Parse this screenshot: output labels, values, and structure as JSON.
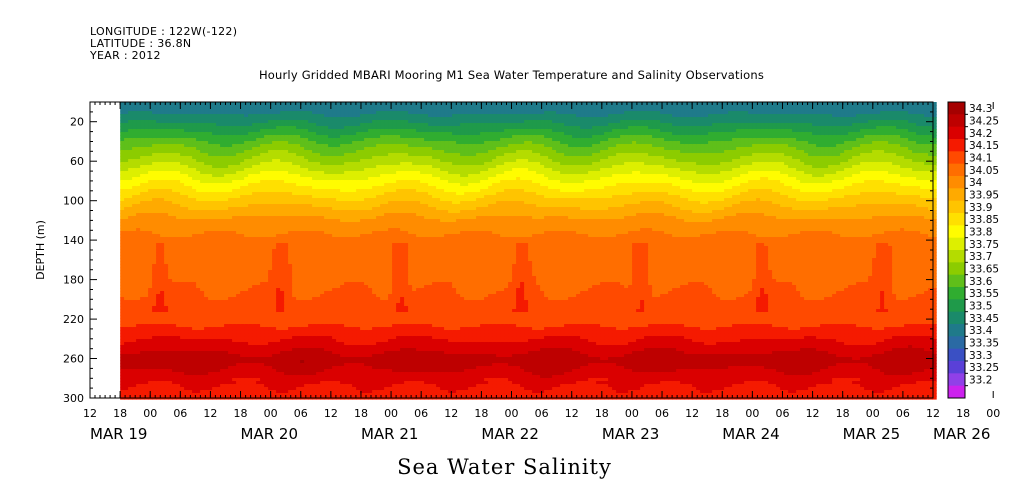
{
  "header": {
    "longitude": "LONGITUDE : 122W(-122)",
    "latitude": "LATITUDE : 36.8N",
    "year": "YEAR : 2012",
    "title": "Hourly Gridded MBARI Mooring M1 Sea Water Temperature and Salinity Observations"
  },
  "footer": {
    "title": "Sea Water Salinity"
  },
  "chart_data": {
    "type": "heatmap",
    "title": "Hourly Gridded MBARI Mooring M1 Sea Water Temperature and Salinity Observations",
    "subtitle": "Sea Water Salinity",
    "ylabel": "DEPTH (m)",
    "xlabel": "",
    "ylim": [
      300,
      0
    ],
    "y_ticks": [
      20,
      60,
      100,
      140,
      180,
      220,
      260,
      300
    ],
    "x_hour_ticks": [
      "12",
      "18",
      "00",
      "06",
      "12",
      "18",
      "00",
      "06",
      "12",
      "18",
      "00",
      "06",
      "12",
      "18",
      "00",
      "06",
      "12",
      "18",
      "00",
      "06",
      "12",
      "18",
      "00",
      "06",
      "12",
      "18",
      "00",
      "06",
      "12",
      "18",
      "00",
      "06"
    ],
    "x_date_labels": [
      {
        "label": "MAR 19",
        "hour": 0
      },
      {
        "label": "MAR 20",
        "hour": 30
      },
      {
        "label": "MAR 21",
        "hour": 54
      },
      {
        "label": "MAR 22",
        "hour": 78
      },
      {
        "label": "MAR 23",
        "hour": 102
      },
      {
        "label": "MAR 24",
        "hour": 126
      },
      {
        "label": "MAR 25",
        "hour": 150
      },
      {
        "label": "MAR 26",
        "hour": 168
      }
    ],
    "x_range_hours": [
      12,
      180
    ],
    "data_start_hour": 18,
    "levels": [
      "34.3",
      "34.25",
      "34.2",
      "34.15",
      "34.1",
      "34.05",
      "34",
      "33.95",
      "33.9",
      "33.85",
      "33.8",
      "33.75",
      "33.7",
      "33.65",
      "33.6",
      "33.55",
      "33.5",
      "33.45",
      "33.4",
      "33.35",
      "33.3",
      "33.25",
      "33.2"
    ],
    "level_colors": [
      "#a50000",
      "#be0000",
      "#da0000",
      "#f51a00",
      "#ff4a00",
      "#ff6e00",
      "#ff8c00",
      "#ffaa00",
      "#ffc400",
      "#ffe000",
      "#fffc00",
      "#ddef00",
      "#b4dc00",
      "#8ccc00",
      "#5fbf1a",
      "#30ad30",
      "#1f9a4a",
      "#1a8a6a",
      "#1f7a8a",
      "#2a6aa4",
      "#3a50c4",
      "#5a40d8",
      "#9040e8",
      "#cc22ee"
    ],
    "salinity_profile": [
      {
        "depth": 5,
        "value": 33.42
      },
      {
        "depth": 20,
        "value": 33.5
      },
      {
        "depth": 40,
        "value": 33.62
      },
      {
        "depth": 60,
        "value": 33.72
      },
      {
        "depth": 80,
        "value": 33.83
      },
      {
        "depth": 100,
        "value": 33.93
      },
      {
        "depth": 120,
        "value": 34.02
      },
      {
        "depth": 140,
        "value": 34.07
      },
      {
        "depth": 180,
        "value": 34.09
      },
      {
        "depth": 220,
        "value": 34.13
      },
      {
        "depth": 245,
        "value": 34.22
      },
      {
        "depth": 260,
        "value": 34.28
      },
      {
        "depth": 285,
        "value": 34.2
      },
      {
        "depth": 300,
        "value": 34.18
      }
    ],
    "grid": false,
    "legend_placement": "right",
    "no_data": "white"
  }
}
